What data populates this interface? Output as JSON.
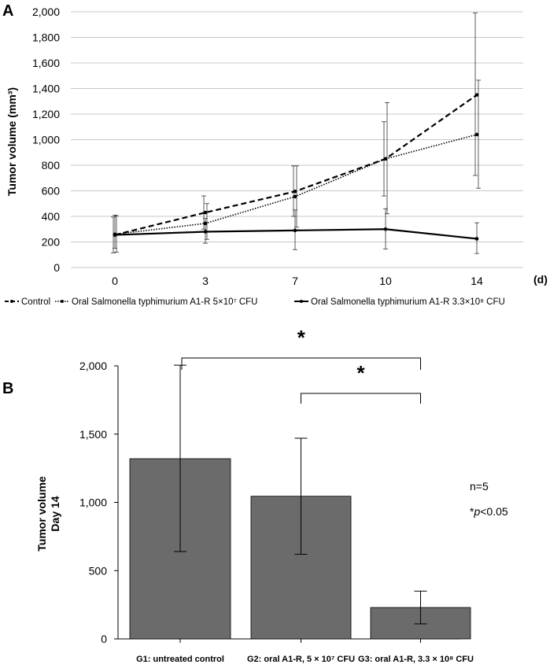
{
  "figure": {
    "panel_a_label": "A",
    "panel_b_label": "B"
  },
  "chart_data": [
    {
      "type": "line",
      "panel": "A",
      "title": "",
      "xlabel": "(d)",
      "ylabel": "Tumor volume (mm³)",
      "ylim": [
        0,
        2000
      ],
      "y_ticks": [
        "0",
        "200",
        "400",
        "600",
        "800",
        "1,000",
        "1,200",
        "1,400",
        "1,600",
        "1,800",
        "2,000"
      ],
      "y_tick_values": [
        0,
        200,
        400,
        600,
        800,
        1000,
        1200,
        1400,
        1600,
        1800,
        2000
      ],
      "categories": [
        "0",
        "3",
        "7",
        "10",
        "14"
      ],
      "grid": true,
      "legend_position": "bottom",
      "series": [
        {
          "name": "Control",
          "legend_label": "Control",
          "style": "dashed",
          "values": [
            255,
            430,
            595,
            850,
            1350
          ],
          "err_low": [
            115,
            300,
            400,
            560,
            720
          ],
          "err_high": [
            395,
            560,
            795,
            1140,
            1990
          ]
        },
        {
          "name": "Oral Salmonella typhimurium A1-R 5×10⁷ CFU",
          "legend_label": "Oral Salmonella typhimurium A1-R 5×10⁷ CFU",
          "style": "dotted",
          "values": [
            260,
            345,
            555,
            850,
            1040
          ],
          "err_low": [
            120,
            220,
            315,
            420,
            620
          ],
          "err_high": [
            405,
            500,
            795,
            1290,
            1465
          ]
        },
        {
          "name": "Oral Salmonella typhimurium A1-R 3.3×10⁸ CFU",
          "legend_label": "Oral Salmonella typhimurium A1-R 3.3×10⁸ CFU",
          "style": "solid",
          "values": [
            255,
            280,
            290,
            300,
            225
          ],
          "err_low": [
            150,
            190,
            140,
            145,
            110
          ],
          "err_high": [
            410,
            385,
            450,
            460,
            350
          ]
        }
      ]
    },
    {
      "type": "bar",
      "panel": "B",
      "title": "",
      "ylabel_line1": "Tumor volume",
      "ylabel_line2": "Day 14",
      "ylim": [
        0,
        2000
      ],
      "y_ticks": [
        "0",
        "500",
        "1,000",
        "1,500",
        "2,000"
      ],
      "y_tick_values": [
        0,
        500,
        1000,
        1500,
        2000
      ],
      "categories": [
        "G1: untreated control",
        "G2: oral A1-R, 5 × 10⁷ CFU",
        "G3: oral A1-R, 3.3 × 10⁸ CFU"
      ],
      "values": [
        1320,
        1045,
        230
      ],
      "err_low": [
        640,
        620,
        110
      ],
      "err_high": [
        2005,
        1470,
        350
      ],
      "bar_color": "#6b6b6b",
      "annotations": {
        "n_text": "n=5",
        "p_prefix": "*",
        "p_italic": "p",
        "p_suffix": "<0.05",
        "significance_brackets": [
          {
            "from": 0,
            "to": 2,
            "label": "*"
          },
          {
            "from": 1,
            "to": 2,
            "label": "*"
          }
        ]
      }
    }
  ]
}
